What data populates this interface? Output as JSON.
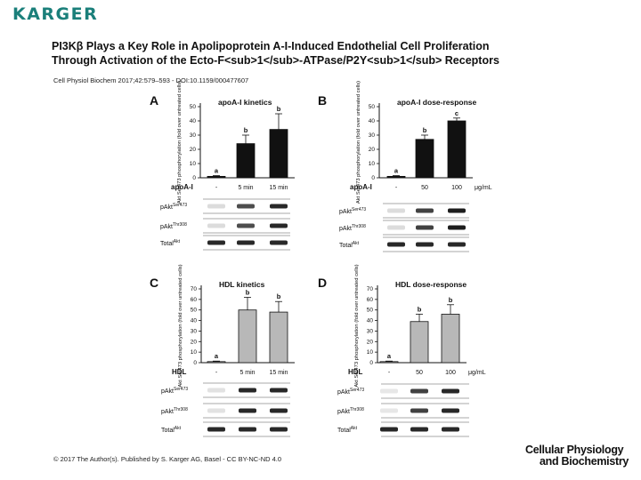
{
  "header": {
    "logo": "KARGER",
    "title_line1": "PI3Kβ Plays a Key Role in Apolipoprotein A-I-Induced Endothelial Cell Proliferation",
    "title_line2": "Through Activation of the Ecto-F<sub>1</sub>-ATPase/P2Y<sub>1</sub> Receptors",
    "citation": "Cell Physiol Biochem 2017;42:579–593 - DOI:10.1159/000477607"
  },
  "footer": {
    "copyright": "© 2017 The Author(s). Published by S. Karger AG, Basel - CC BY-NC-ND 4.0",
    "brand_line1": "Cellular Physiology",
    "brand_line2": "and Biochemistry"
  },
  "chart_data": [
    {
      "panel": "A",
      "type": "bar",
      "title": "apoA-I kinetics",
      "treatment_label": "apoA-I",
      "categories": [
        "-",
        "5 min",
        "15 min"
      ],
      "unit": "",
      "values": [
        1,
        24,
        34
      ],
      "errors": [
        0.5,
        6,
        11
      ],
      "significance": [
        "a",
        "b",
        "b"
      ],
      "ylabel": "Akt Ser473 phosphorylation (fold over untreated cells)",
      "ylim": [
        0,
        50
      ],
      "yticks": [
        0,
        10,
        20,
        30,
        40,
        50
      ],
      "bar_color": "#111111",
      "blots": [
        "pAkt Ser473",
        "pAkt Thr308",
        "Total Akt"
      ]
    },
    {
      "panel": "B",
      "type": "bar",
      "title": "apoA-I dose-response",
      "treatment_label": "apoA-I",
      "categories": [
        "-",
        "50",
        "100"
      ],
      "unit": "μg/mL",
      "values": [
        1,
        27,
        40
      ],
      "errors": [
        0.5,
        3,
        2
      ],
      "significance": [
        "a",
        "b",
        "c"
      ],
      "ylabel": "Akt Ser473 phosphorylation (fold over untreated cells)",
      "ylim": [
        0,
        50
      ],
      "yticks": [
        0,
        10,
        20,
        30,
        40,
        50
      ],
      "bar_color": "#111111",
      "blots": [
        "pAkt Ser473",
        "pAkt Thr308",
        "Total Akt"
      ]
    },
    {
      "panel": "C",
      "type": "bar",
      "title": "HDL kinetics",
      "treatment_label": "HDL",
      "categories": [
        "-",
        "5 min",
        "15 min"
      ],
      "unit": "",
      "values": [
        1,
        50,
        48
      ],
      "errors": [
        0.5,
        12,
        10
      ],
      "significance": [
        "a",
        "b",
        "b"
      ],
      "ylabel": "Akt Ser473 phosphorylation (fold over untreated cells)",
      "ylim": [
        0,
        70
      ],
      "yticks": [
        0,
        10,
        20,
        30,
        40,
        50,
        60,
        70
      ],
      "bar_color": "#b8b8b8",
      "blots": [
        "pAkt Ser473",
        "pAkt Thr308",
        "Total Akt"
      ]
    },
    {
      "panel": "D",
      "type": "bar",
      "title": "HDL dose-response",
      "treatment_label": "HDL",
      "categories": [
        "-",
        "50",
        "100"
      ],
      "unit": "μg/mL",
      "values": [
        1,
        39,
        46
      ],
      "errors": [
        0.5,
        7,
        9
      ],
      "significance": [
        "a",
        "b",
        "b"
      ],
      "ylabel": "Akt Ser473 phosphorylation (fold over untreated cells)",
      "ylim": [
        0,
        70
      ],
      "yticks": [
        0,
        10,
        20,
        30,
        40,
        50,
        60,
        70
      ],
      "bar_color": "#b8b8b8",
      "blots": [
        "pAkt Ser473",
        "pAkt Thr308",
        "Total Akt"
      ]
    }
  ]
}
